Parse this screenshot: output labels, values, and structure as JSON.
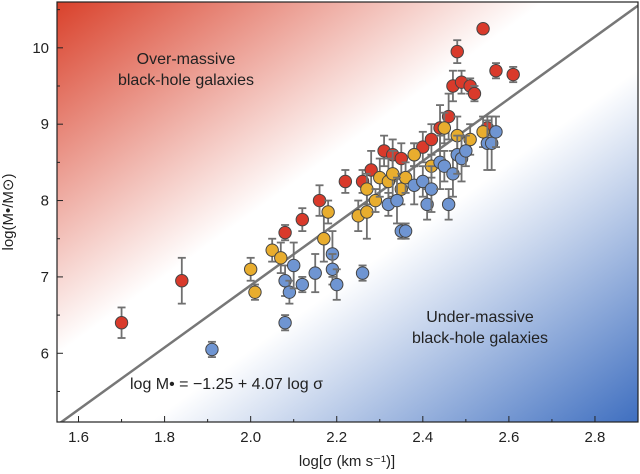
{
  "chart_data": {
    "type": "scatter",
    "xlabel": "log[σ (km s⁻¹)]",
    "ylabel": "log(M•/M⊙)",
    "xlim": [
      1.55,
      2.9
    ],
    "ylim": [
      5.1,
      10.6
    ],
    "x_ticks": [
      "1.6",
      "1.8",
      "2.0",
      "2.2",
      "2.4",
      "2.6",
      "2.8"
    ],
    "y_ticks": [
      "6",
      "7",
      "8",
      "9",
      "10"
    ],
    "annotations": {
      "upper_left": [
        "Over-massive",
        "black-hole galaxies"
      ],
      "lower_right": [
        "Under-massive",
        "black-hole galaxies"
      ],
      "fit_label": "log M• = −1.25 + 4.07 log σ"
    },
    "fit_line": {
      "intercept": -1.25,
      "slope": 4.07
    },
    "background": {
      "upper_left_color": "#d9412b",
      "lower_right_color": "#3f6fc0"
    },
    "grid": false,
    "legend": "none",
    "series": [
      {
        "color": "#d93a2b",
        "points": [
          {
            "x": 1.7,
            "y": 6.4,
            "err": 0.2
          },
          {
            "x": 1.84,
            "y": 6.95,
            "err": 0.3
          },
          {
            "x": 2.08,
            "y": 7.58,
            "err": 0.1
          },
          {
            "x": 2.12,
            "y": 7.75,
            "err": 0.15
          },
          {
            "x": 2.16,
            "y": 8.0,
            "err": 0.2
          },
          {
            "x": 2.22,
            "y": 8.25,
            "err": 0.15
          },
          {
            "x": 2.26,
            "y": 8.25,
            "err": 0.15
          },
          {
            "x": 2.28,
            "y": 8.4,
            "err": 0.25
          },
          {
            "x": 2.31,
            "y": 8.65,
            "err": 0.2
          },
          {
            "x": 2.33,
            "y": 8.6,
            "err": 0.2
          },
          {
            "x": 2.35,
            "y": 8.55,
            "err": 0.2
          },
          {
            "x": 2.38,
            "y": 8.6,
            "err": 0.15
          },
          {
            "x": 2.4,
            "y": 8.7,
            "err": 0.2
          },
          {
            "x": 2.42,
            "y": 8.8,
            "err": 0.2
          },
          {
            "x": 2.44,
            "y": 8.95,
            "err": 0.3
          },
          {
            "x": 2.46,
            "y": 9.1,
            "err": 0.3
          },
          {
            "x": 2.47,
            "y": 9.5,
            "err": 0.2
          },
          {
            "x": 2.48,
            "y": 9.95,
            "err": 0.15
          },
          {
            "x": 2.49,
            "y": 9.55,
            "err": 0.15
          },
          {
            "x": 2.51,
            "y": 9.5,
            "err": 0.1
          },
          {
            "x": 2.52,
            "y": 9.4,
            "err": 0.1
          },
          {
            "x": 2.54,
            "y": 10.25,
            "err": 0.05
          },
          {
            "x": 2.57,
            "y": 9.7,
            "err": 0.1
          },
          {
            "x": 2.61,
            "y": 9.65,
            "err": 0.1
          },
          {
            "x": 2.55,
            "y": 8.95,
            "err": 0.1
          }
        ]
      },
      {
        "color": "#e8ad2e",
        "points": [
          {
            "x": 2.0,
            "y": 7.1,
            "err": 0.15
          },
          {
            "x": 2.01,
            "y": 6.8,
            "err": 0.1
          },
          {
            "x": 2.05,
            "y": 7.35,
            "err": 0.15
          },
          {
            "x": 2.07,
            "y": 7.25,
            "err": 0.2
          },
          {
            "x": 2.17,
            "y": 7.5,
            "err": 0.3
          },
          {
            "x": 2.18,
            "y": 7.85,
            "err": 0.15
          },
          {
            "x": 2.25,
            "y": 7.8,
            "err": 0.2
          },
          {
            "x": 2.27,
            "y": 7.85,
            "err": 0.35
          },
          {
            "x": 2.27,
            "y": 8.15,
            "err": 0.2
          },
          {
            "x": 2.29,
            "y": 8.0,
            "err": 0.15
          },
          {
            "x": 2.3,
            "y": 8.3,
            "err": 0.25
          },
          {
            "x": 2.32,
            "y": 8.25,
            "err": 0.3
          },
          {
            "x": 2.33,
            "y": 8.35,
            "err": 0.3
          },
          {
            "x": 2.35,
            "y": 8.15,
            "err": 0.2
          },
          {
            "x": 2.36,
            "y": 8.3,
            "err": 0.2
          },
          {
            "x": 2.38,
            "y": 8.6,
            "err": 0.15
          },
          {
            "x": 2.42,
            "y": 8.45,
            "err": 0.15
          },
          {
            "x": 2.45,
            "y": 8.95,
            "err": 0.2
          },
          {
            "x": 2.48,
            "y": 8.85,
            "err": 0.25
          },
          {
            "x": 2.51,
            "y": 8.8,
            "err": 0.2
          },
          {
            "x": 2.54,
            "y": 8.9,
            "err": 0.2
          }
        ]
      },
      {
        "color": "#6f95d2",
        "points": [
          {
            "x": 1.91,
            "y": 6.05,
            "err": 0.1
          },
          {
            "x": 2.08,
            "y": 6.95,
            "err": 0.2
          },
          {
            "x": 2.09,
            "y": 6.8,
            "err": 0.15
          },
          {
            "x": 2.1,
            "y": 7.15,
            "err": 0.3
          },
          {
            "x": 2.12,
            "y": 6.9,
            "err": 0.1
          },
          {
            "x": 2.15,
            "y": 7.05,
            "err": 0.25
          },
          {
            "x": 2.19,
            "y": 7.3,
            "err": 0.3
          },
          {
            "x": 2.19,
            "y": 7.1,
            "err": 0.2
          },
          {
            "x": 2.2,
            "y": 6.9,
            "err": 0.2
          },
          {
            "x": 2.26,
            "y": 7.05,
            "err": 0.1
          },
          {
            "x": 2.08,
            "y": 6.4,
            "err": 0.1
          },
          {
            "x": 2.32,
            "y": 7.95,
            "err": 0.15
          },
          {
            "x": 2.34,
            "y": 8.0,
            "err": 0.3
          },
          {
            "x": 2.35,
            "y": 7.6,
            "err": 0.1
          },
          {
            "x": 2.36,
            "y": 7.6,
            "err": 0.1
          },
          {
            "x": 2.38,
            "y": 8.2,
            "err": 0.25
          },
          {
            "x": 2.4,
            "y": 8.25,
            "err": 0.2
          },
          {
            "x": 2.41,
            "y": 7.95,
            "err": 0.2
          },
          {
            "x": 2.42,
            "y": 8.15,
            "err": 0.3
          },
          {
            "x": 2.44,
            "y": 8.5,
            "err": 0.35
          },
          {
            "x": 2.45,
            "y": 8.45,
            "err": 0.2
          },
          {
            "x": 2.46,
            "y": 7.95,
            "err": 0.2
          },
          {
            "x": 2.47,
            "y": 8.35,
            "err": 0.3
          },
          {
            "x": 2.48,
            "y": 8.6,
            "err": 0.25
          },
          {
            "x": 2.49,
            "y": 8.55,
            "err": 0.3
          },
          {
            "x": 2.5,
            "y": 8.65,
            "err": 0.2
          },
          {
            "x": 2.55,
            "y": 8.75,
            "err": 0.35
          },
          {
            "x": 2.56,
            "y": 8.75,
            "err": 0.35
          },
          {
            "x": 2.57,
            "y": 8.9,
            "err": 0.2
          }
        ]
      }
    ]
  }
}
